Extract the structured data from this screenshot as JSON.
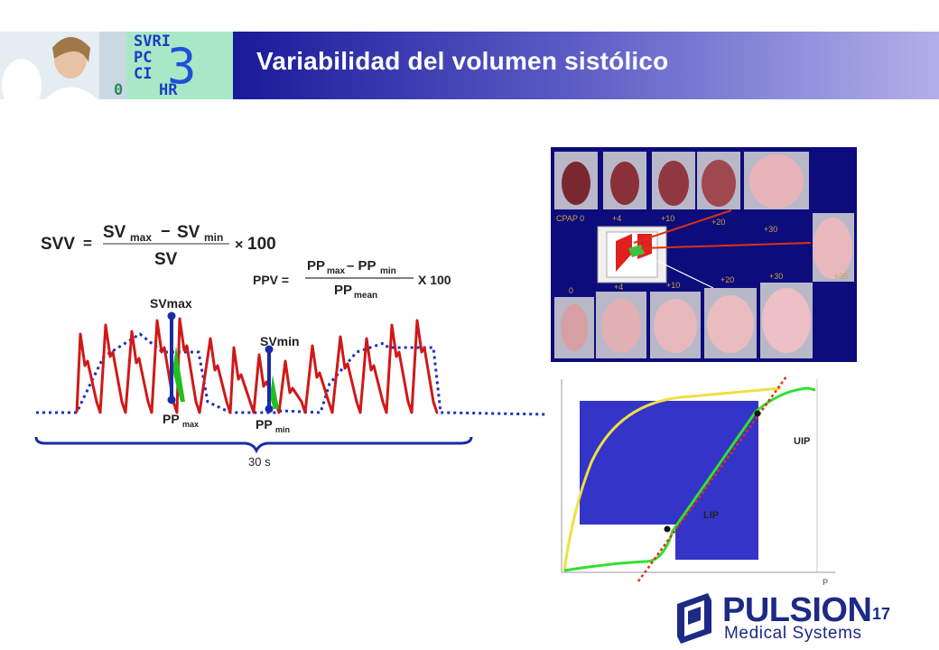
{
  "header": {
    "title": "Variabilidad del volumen sistólico",
    "monitor_lines": [
      "SVRI",
      "PC",
      "CI",
      "HR"
    ],
    "monitor_big": "3",
    "monitor_zero": "0"
  },
  "formulas": {
    "svv": {
      "lhs": "SVV",
      "eq": "=",
      "num_a": "SV",
      "num_a_sub": "max",
      "minus": "−",
      "num_b": "SV",
      "num_b_sub": "min",
      "den": "SV",
      "times": "×",
      "factor": "100"
    },
    "ppv": {
      "lhs": "PPV =",
      "num_a": "PP",
      "num_a_sub": "max",
      "minus": "– PP",
      "num_b_sub": "min",
      "den": "PP",
      "den_sub": "mean",
      "factor": "X 100"
    }
  },
  "waveform": {
    "sv_max_label": "SVmax",
    "sv_min_label": "SVmin",
    "pp_max_label": "PP",
    "pp_max_sub": "max",
    "pp_min_label": "PP",
    "pp_min_sub": "min",
    "duration_label": "30 s"
  },
  "lungs": {
    "top_labels": [
      "CPAP 0",
      "+4",
      "+10",
      "+20",
      "+30"
    ],
    "bottom_labels": [
      "0",
      "+4",
      "+10",
      "+20",
      "+30",
      "+35"
    ]
  },
  "pv_curve": {
    "uip_label": "UIP",
    "lip_label": "LIP",
    "p_axis_label": "P"
  },
  "footer": {
    "page_number": "17",
    "brand": "PULSION",
    "brand_sub": "Medical Systems"
  },
  "colors": {
    "banner": "#0d0d86",
    "wave_red": "#d01818",
    "wave_blue": "#2030c0",
    "green": "#20c020",
    "pv_blue": "#3434c8",
    "yellow": "#f0e040",
    "brand": "#1d2a85"
  }
}
